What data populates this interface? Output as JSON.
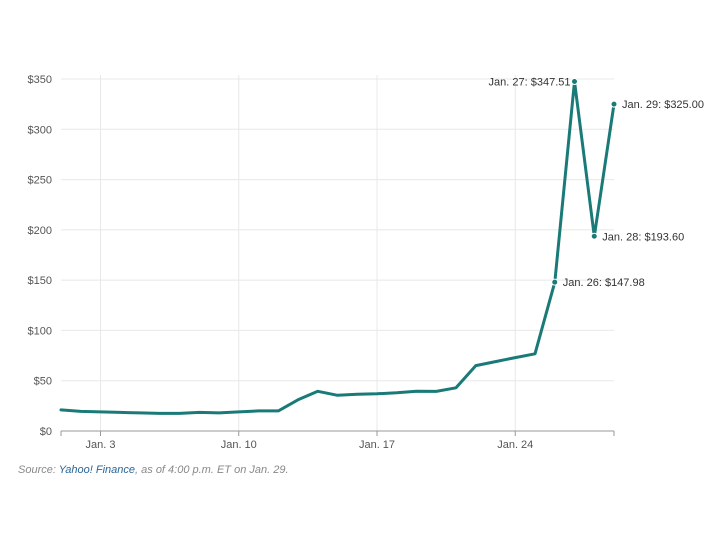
{
  "chart_data": {
    "type": "line",
    "title": "",
    "xlabel": "",
    "ylabel": "",
    "ylim": [
      0,
      350
    ],
    "y_ticks": [
      0,
      50,
      100,
      150,
      200,
      250,
      300,
      350
    ],
    "y_tick_labels": [
      "$0",
      "$50",
      "$100",
      "$150",
      "$200",
      "$250",
      "$300",
      "$350"
    ],
    "x_range": [
      "2021-01-01",
      "2021-01-29"
    ],
    "x_ticks": [
      {
        "date": "2021-01-03",
        "label": "Jan. 3"
      },
      {
        "date": "2021-01-10",
        "label": "Jan. 10"
      },
      {
        "date": "2021-01-17",
        "label": "Jan. 17"
      },
      {
        "date": "2021-01-24",
        "label": "Jan. 24"
      }
    ],
    "grid": true,
    "color": "#1a7a78",
    "points": [
      {
        "x": "2021-01-01",
        "y": 21
      },
      {
        "x": "2021-01-02",
        "y": 19.5
      },
      {
        "x": "2021-01-04",
        "y": 18.5
      },
      {
        "x": "2021-01-05",
        "y": 18
      },
      {
        "x": "2021-01-06",
        "y": 17.5
      },
      {
        "x": "2021-01-07",
        "y": 17.5
      },
      {
        "x": "2021-01-08",
        "y": 18.5
      },
      {
        "x": "2021-01-09",
        "y": 18
      },
      {
        "x": "2021-01-10",
        "y": 19
      },
      {
        "x": "2021-01-11",
        "y": 20
      },
      {
        "x": "2021-01-12",
        "y": 20
      },
      {
        "x": "2021-01-13",
        "y": 31
      },
      {
        "x": "2021-01-14",
        "y": 39.5
      },
      {
        "x": "2021-01-15",
        "y": 35.5
      },
      {
        "x": "2021-01-16",
        "y": 36.5
      },
      {
        "x": "2021-01-17",
        "y": 37
      },
      {
        "x": "2021-01-18",
        "y": 38
      },
      {
        "x": "2021-01-19",
        "y": 39.5
      },
      {
        "x": "2021-01-20",
        "y": 39.4
      },
      {
        "x": "2021-01-21",
        "y": 43
      },
      {
        "x": "2021-01-22",
        "y": 65
      },
      {
        "x": "2021-01-23",
        "y": 69
      },
      {
        "x": "2021-01-24",
        "y": 73
      },
      {
        "x": "2021-01-25",
        "y": 76.8
      },
      {
        "x": "2021-01-26",
        "y": 147.98
      },
      {
        "x": "2021-01-27",
        "y": 347.51
      },
      {
        "x": "2021-01-28",
        "y": 193.6
      },
      {
        "x": "2021-01-29",
        "y": 325
      }
    ],
    "annotations": [
      {
        "x": "2021-01-27",
        "y": 347.51,
        "label": "Jan. 27: $347.51",
        "side": "left"
      },
      {
        "x": "2021-01-29",
        "y": 325,
        "label": "Jan. 29: $325.00",
        "side": "right"
      },
      {
        "x": "2021-01-28",
        "y": 193.6,
        "label": "Jan. 28: $193.60",
        "side": "right"
      },
      {
        "x": "2021-01-26",
        "y": 147.98,
        "label": "Jan. 26: $147.98",
        "side": "right"
      }
    ]
  },
  "source": {
    "prefix": "Source: ",
    "link_text": "Yahoo! Finance",
    "suffix": ", as of 4:00 p.m. ET on Jan. 29."
  }
}
